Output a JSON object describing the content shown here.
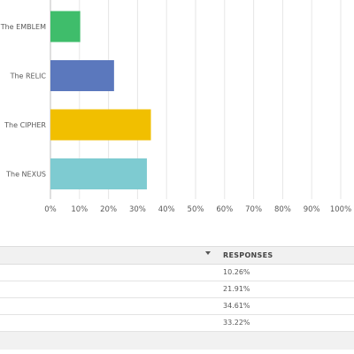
{
  "chart_data": {
    "type": "bar",
    "orientation": "horizontal",
    "categories": [
      "The EMBLEM",
      "The RELIC",
      "The CIPHER",
      "The NEXUS"
    ],
    "values": [
      10.26,
      21.91,
      34.61,
      33.22
    ],
    "colors": [
      "#3fbd6b",
      "#5b78bd",
      "#f1bf00",
      "#7ecbd1"
    ],
    "xlim": [
      0,
      100
    ],
    "x_ticks": [
      "0%",
      "10%",
      "20%",
      "30%",
      "40%",
      "50%",
      "60%",
      "70%",
      "80%",
      "90%",
      "100%"
    ],
    "grid": true,
    "title": "",
    "xlabel": "",
    "ylabel": ""
  },
  "table": {
    "header": "RESPONSES",
    "rows": [
      "10.26%",
      "21.91%",
      "34.61%",
      "33.22%"
    ]
  }
}
